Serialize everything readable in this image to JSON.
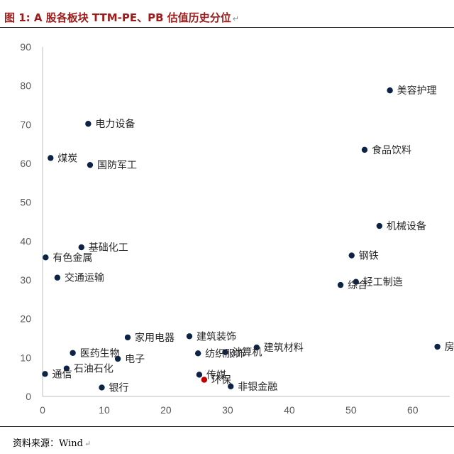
{
  "title": "图 1: A 股各板块 TTM-PE、PB 估值历史分位",
  "title_mark": "↵",
  "source": "资料来源：Wind",
  "source_mark": "↵",
  "colors": {
    "title": "#9c1c1c",
    "point": "#0d2346",
    "highlight": "#c00000",
    "axis": "#bfbfbf",
    "text": "#595959"
  },
  "chart_data": {
    "type": "scatter",
    "title": "",
    "xlabel": "",
    "ylabel": "",
    "xlim": [
      0,
      66
    ],
    "ylim": [
      0,
      90
    ],
    "xticks": [
      0,
      10,
      20,
      30,
      40,
      50,
      60
    ],
    "yticks": [
      0,
      10,
      20,
      30,
      40,
      50,
      60,
      70,
      80,
      90
    ],
    "grid": false,
    "points": [
      {
        "label": "美容护理",
        "x": 56.3,
        "y": 78.8
      },
      {
        "label": "电力设备",
        "x": 7.4,
        "y": 70.2
      },
      {
        "label": "食品饮料",
        "x": 52.2,
        "y": 63.5
      },
      {
        "label": "煤炭",
        "x": 1.3,
        "y": 61.4
      },
      {
        "label": "国防军工",
        "x": 7.7,
        "y": 59.6
      },
      {
        "label": "机械设备",
        "x": 54.6,
        "y": 43.9
      },
      {
        "label": "基础化工",
        "x": 6.3,
        "y": 38.4
      },
      {
        "label": "钢铁",
        "x": 50.1,
        "y": 36.3
      },
      {
        "label": "有色金属",
        "x": 0.5,
        "y": 35.8
      },
      {
        "label": "交通运输",
        "x": 2.4,
        "y": 30.6
      },
      {
        "label": "轻工制造",
        "x": 50.8,
        "y": 29.5
      },
      {
        "label": "综合",
        "x": 48.3,
        "y": 28.7
      },
      {
        "label": "家用电器",
        "x": 13.8,
        "y": 15.2
      },
      {
        "label": "建筑装饰",
        "x": 23.8,
        "y": 15.5
      },
      {
        "label": "建筑材料",
        "x": 34.7,
        "y": 12.6
      },
      {
        "label": "房地产",
        "x": 64.0,
        "y": 12.8
      },
      {
        "label": "医药生物",
        "x": 4.9,
        "y": 11.2
      },
      {
        "label": "纺织服饰",
        "x": 25.2,
        "y": 11.1
      },
      {
        "label": "计算机",
        "x": 29.6,
        "y": 11.4
      },
      {
        "label": "电子",
        "x": 12.2,
        "y": 9.7
      },
      {
        "label": "石油石化",
        "x": 3.9,
        "y": 7.2
      },
      {
        "label": "通信",
        "x": 0.4,
        "y": 5.8
      },
      {
        "label": "传媒",
        "x": 25.4,
        "y": 5.6
      },
      {
        "label": "环保",
        "x": 26.2,
        "y": 4.3,
        "highlight": true
      },
      {
        "label": "非银金融",
        "x": 30.5,
        "y": 2.6
      },
      {
        "label": "银行",
        "x": 9.6,
        "y": 2.3
      }
    ]
  }
}
